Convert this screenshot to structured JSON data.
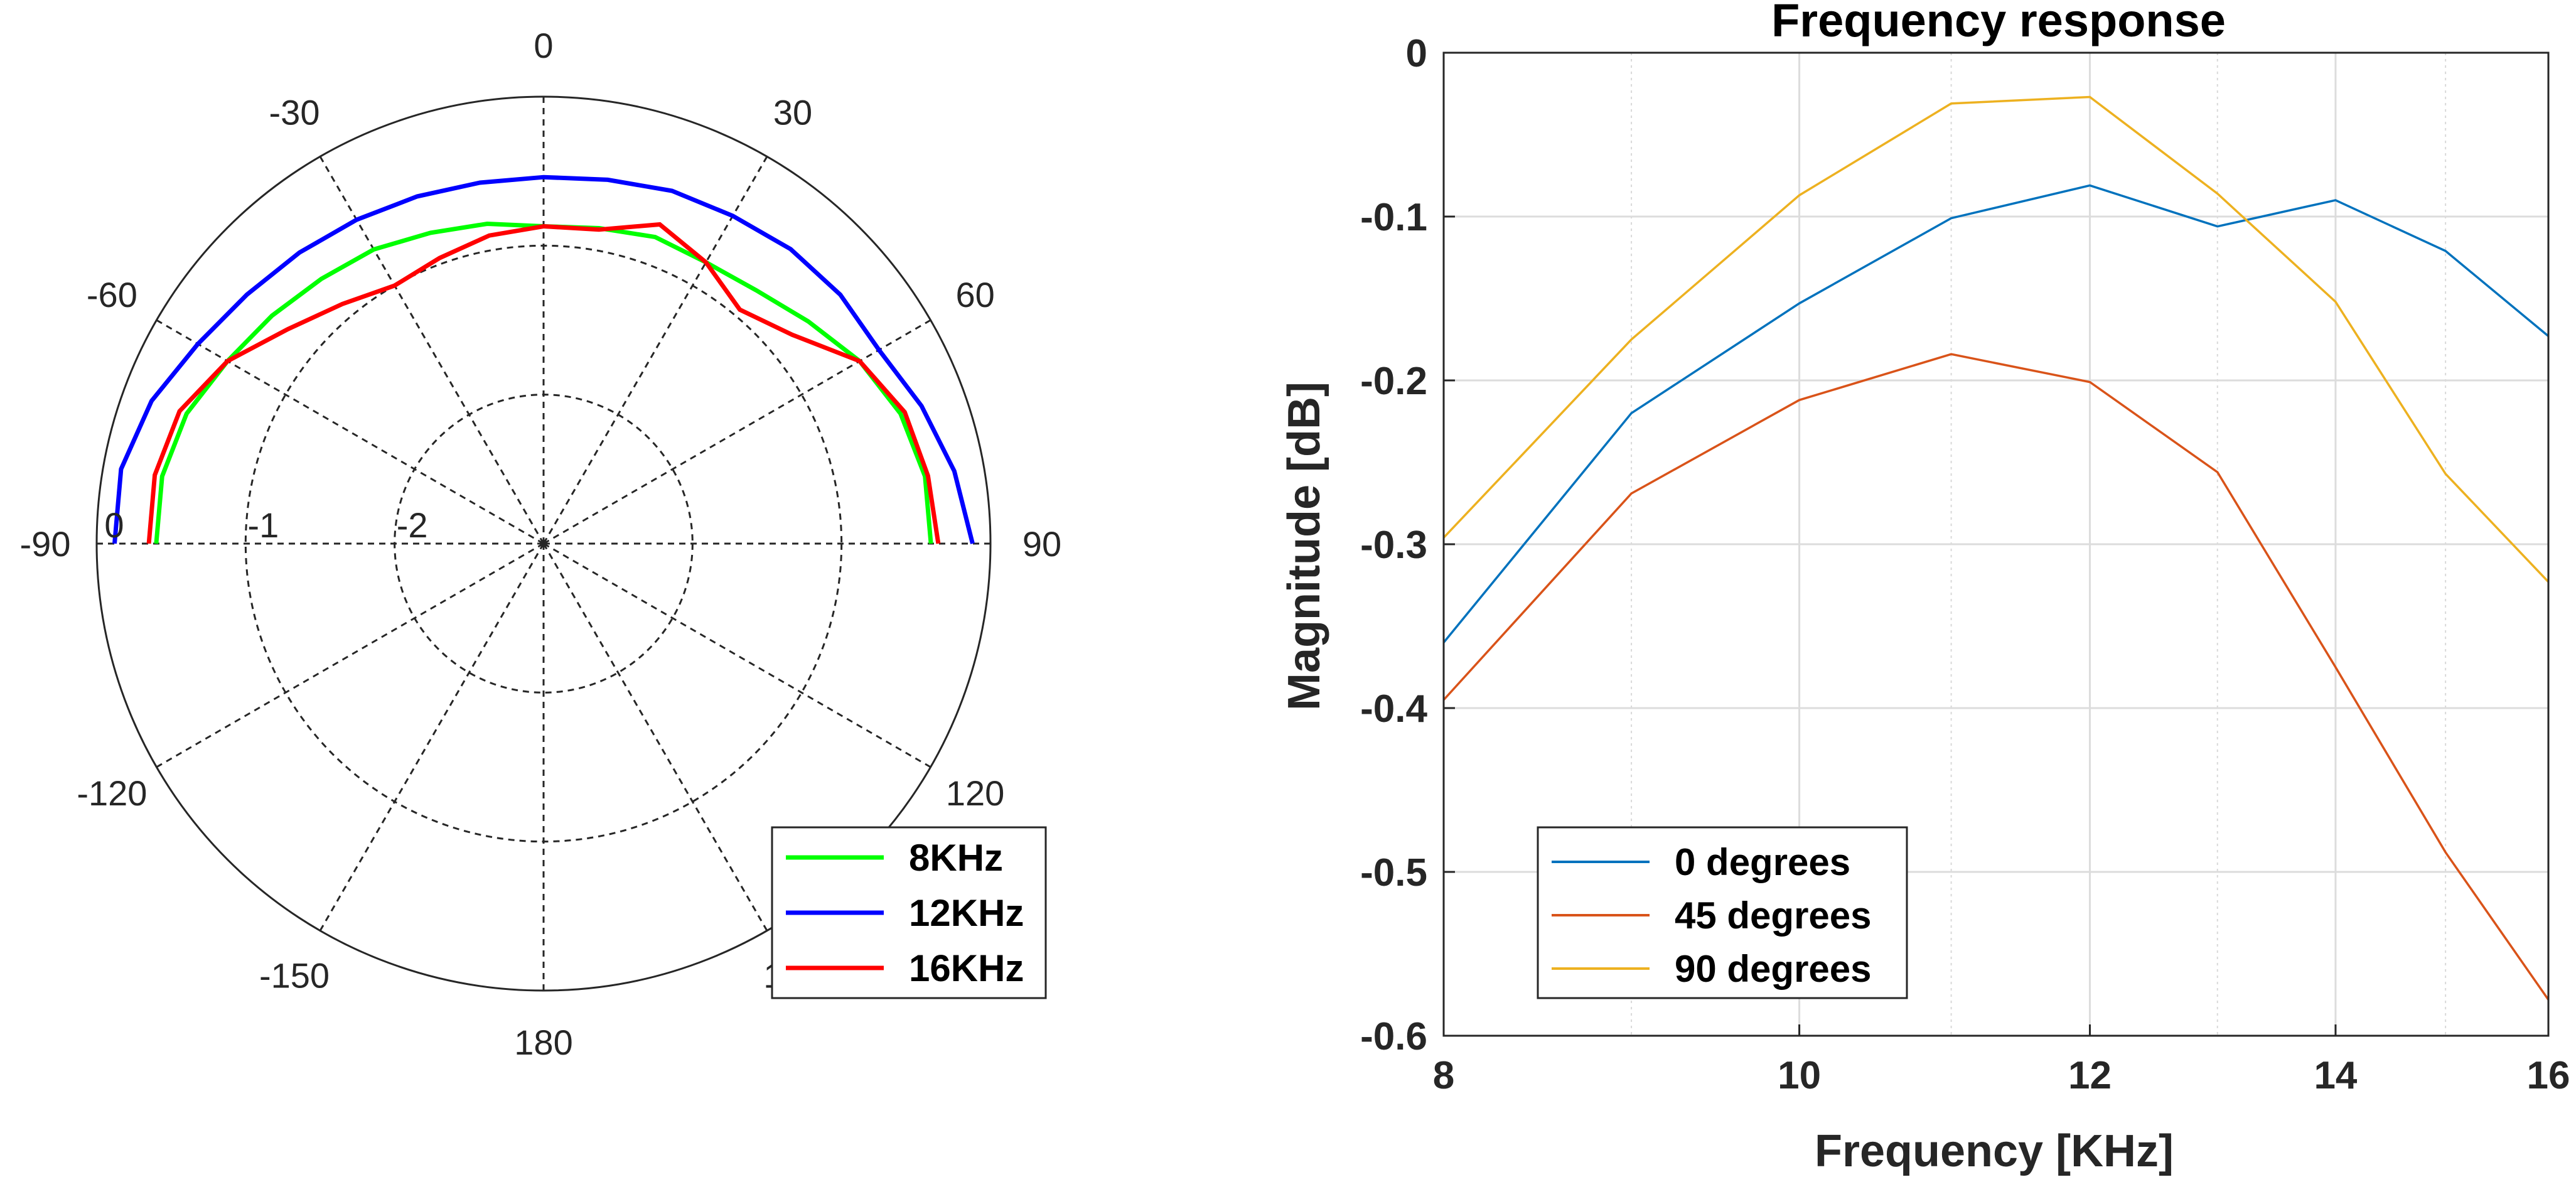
{
  "chart_data": [
    {
      "type": "polar-line",
      "theta_ticks": [
        0,
        30,
        60,
        90,
        120,
        150,
        180,
        -150,
        -120,
        -90,
        -60,
        -30
      ],
      "theta_tick_labels": [
        "0",
        "30",
        "60",
        "90",
        "120",
        "150",
        "180",
        "-150",
        "-120",
        "-90",
        "-60",
        "-30"
      ],
      "r_ticks": [
        -2,
        -1,
        0
      ],
      "r_tick_labels": [
        "-2",
        "-1",
        "0"
      ],
      "rlim": [
        -3,
        0
      ],
      "theta": [
        -90,
        -80,
        -70,
        -60,
        -50,
        -40,
        -30,
        -20,
        -10,
        0,
        10,
        20,
        30,
        40,
        50,
        60,
        70,
        80,
        90
      ],
      "series": [
        {
          "name": "8KHz",
          "color": "#00ff00",
          "values": [
            -0.4,
            -0.4,
            -0.45,
            -0.55,
            -0.62,
            -0.68,
            -0.72,
            -0.78,
            -0.82,
            -0.87,
            -0.85,
            -0.81,
            -0.82,
            -0.78,
            -0.68,
            -0.55,
            -0.45,
            -0.4,
            -0.4
          ]
        },
        {
          "name": "12KHz",
          "color": "#0000ff",
          "values": [
            -0.12,
            -0.12,
            -0.2,
            -0.32,
            -0.4,
            -0.45,
            -0.49,
            -0.52,
            -0.54,
            -0.54,
            -0.52,
            -0.48,
            -0.46,
            -0.42,
            -0.4,
            -0.4,
            -0.3,
            -0.2,
            -0.12
          ]
        },
        {
          "name": "16KHz",
          "color": "#ff0000",
          "values": [
            -0.35,
            -0.35,
            -0.4,
            -0.55,
            -0.76,
            -0.9,
            -1.0,
            -0.96,
            -0.9,
            -0.87,
            -0.86,
            -0.72,
            -0.82,
            -0.95,
            -0.82,
            -0.55,
            -0.42,
            -0.38,
            -0.35
          ]
        }
      ],
      "legend_position": "bottom-right"
    },
    {
      "type": "line",
      "title": "Frequency response",
      "xlabel": "Frequency [KHz]",
      "ylabel": "Magnitude [dB]",
      "xlim": [
        8,
        16
      ],
      "ylim": [
        -0.6,
        0
      ],
      "xscale": "log",
      "x_ticks": [
        8,
        10,
        12,
        14,
        16
      ],
      "y_ticks": [
        0,
        -0.1,
        -0.2,
        -0.3,
        -0.4,
        -0.5,
        -0.6
      ],
      "y_tick_labels": [
        "0",
        "-0.1",
        "-0.2",
        "-0.3",
        "-0.4",
        "-0.5",
        "-0.6"
      ],
      "grid": true,
      "x": [
        8,
        9,
        10,
        11,
        12,
        13,
        14,
        15,
        16
      ],
      "series": [
        {
          "name": "0 degrees",
          "color": "#0072bd",
          "values": [
            -0.36,
            -0.22,
            -0.153,
            -0.101,
            -0.081,
            -0.106,
            -0.09,
            -0.121,
            -0.173
          ]
        },
        {
          "name": "45 degrees",
          "color": "#d95319",
          "values": [
            -0.395,
            -0.269,
            -0.212,
            -0.184,
            -0.201,
            -0.256,
            -0.375,
            -0.488,
            -0.578
          ]
        },
        {
          "name": "90 degrees",
          "color": "#edb120",
          "values": [
            -0.296,
            -0.175,
            -0.087,
            -0.031,
            -0.027,
            -0.086,
            -0.152,
            -0.257,
            -0.323
          ]
        }
      ],
      "legend_position": "bottom-left"
    }
  ]
}
